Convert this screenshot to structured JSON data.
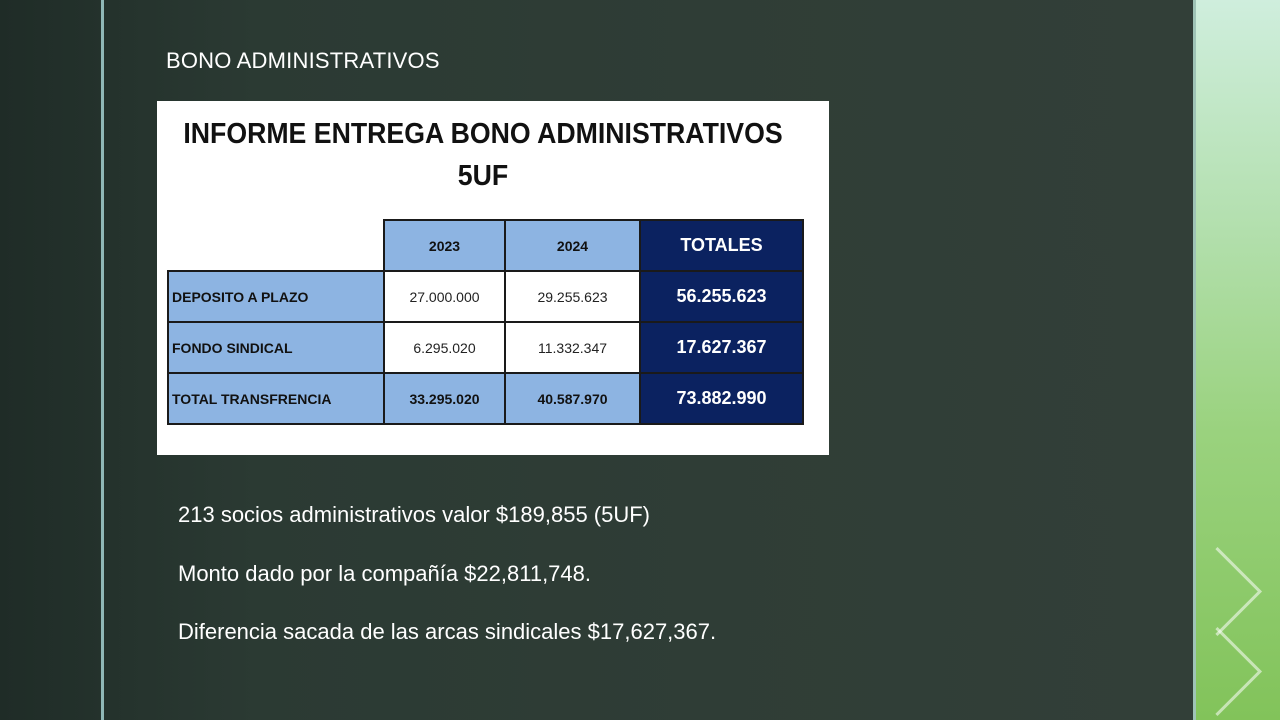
{
  "slide": {
    "title": "BONO ADMINISTRATIVOS",
    "colors": {
      "background": "#2f3d36",
      "accent_rule": "#8fb7b6",
      "table_header": "#8db4e2",
      "totals_fill": "#0b2260"
    }
  },
  "report": {
    "title_line1": "INFORME ENTREGA BONO ADMINISTRATIVOS",
    "title_line2": "5UF",
    "columns": [
      "2023",
      "2024",
      "TOTALES"
    ],
    "rows": [
      {
        "label": "DEPOSITO A PLAZO",
        "y2023": "27.000.000",
        "y2024": "29.255.623",
        "total": "56.255.623"
      },
      {
        "label": "FONDO SINDICAL",
        "y2023": "6.295.020",
        "y2024": "11.332.347",
        "total": "17.627.367"
      },
      {
        "label": "TOTAL TRANSFRENCIA",
        "y2023": "33.295.020",
        "y2024": "40.587.970",
        "total": "73.882.990"
      }
    ]
  },
  "notes": [
    "213 socios administrativos valor $189,855 (5UF)",
    "Monto dado por la compañía $22,811,748.",
    "Diferencia sacada de las arcas sindicales $17,627,367."
  ]
}
